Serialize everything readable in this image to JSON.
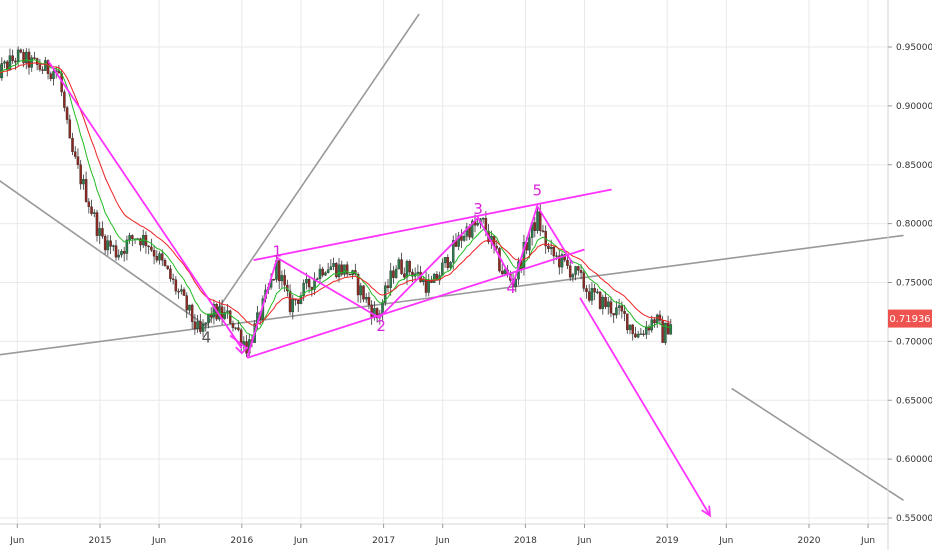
{
  "chart_data": {
    "type": "candlestick",
    "y_axis": {
      "side": "right",
      "ticks": [
        "0.95000",
        "0.90000",
        "0.85000",
        "0.80000",
        "0.75000",
        "0.70000",
        "0.65000",
        "0.60000",
        "0.55000"
      ],
      "ylim": [
        0.549,
        0.978
      ]
    },
    "x_axis": {
      "ticks": [
        "Jun",
        "2015",
        "Jun",
        "2016",
        "Jun",
        "2017",
        "Jun",
        "2018",
        "Jun",
        "2019",
        "Jun",
        "2020",
        "Jun"
      ],
      "range": [
        "2014-04",
        "2020-09"
      ]
    },
    "last_price": {
      "label": "0.71936",
      "value": 0.71936,
      "color": "#ef5350"
    },
    "colors": {
      "up": "#26a69a",
      "down": "#ef5350",
      "ema_fast": "#22bb22",
      "ema_slow": "#ee2222",
      "wave": "#ff33ff",
      "trend": "#999999",
      "grid": "#e9e9e9"
    },
    "series": [
      {
        "name": "price",
        "kind": "candles",
        "anchors": [
          [
            "2014-04-01",
            0.925
          ],
          [
            "2014-06-01",
            0.942
          ],
          [
            "2014-08-01",
            0.932
          ],
          [
            "2014-09-15",
            0.93
          ],
          [
            "2014-10-15",
            0.865
          ],
          [
            "2014-12-01",
            0.82
          ],
          [
            "2015-01-01",
            0.79
          ],
          [
            "2015-02-15",
            0.775
          ],
          [
            "2015-04-01",
            0.79
          ],
          [
            "2015-05-01",
            0.785
          ],
          [
            "2015-06-01",
            0.77
          ],
          [
            "2015-08-01",
            0.735
          ],
          [
            "2015-09-15",
            0.705
          ],
          [
            "2015-10-15",
            0.725
          ],
          [
            "2015-12-01",
            0.72
          ],
          [
            "2016-01-15",
            0.695
          ],
          [
            "2016-02-15",
            0.72
          ],
          [
            "2016-04-01",
            0.765
          ],
          [
            "2016-05-01",
            0.73
          ],
          [
            "2016-06-15",
            0.745
          ],
          [
            "2016-08-01",
            0.765
          ],
          [
            "2016-10-01",
            0.76
          ],
          [
            "2016-12-15",
            0.72
          ],
          [
            "2017-02-01",
            0.765
          ],
          [
            "2017-03-15",
            0.76
          ],
          [
            "2017-05-01",
            0.745
          ],
          [
            "2017-07-01",
            0.78
          ],
          [
            "2017-08-01",
            0.795
          ],
          [
            "2017-09-15",
            0.8
          ],
          [
            "2017-11-01",
            0.76
          ],
          [
            "2017-12-01",
            0.75
          ],
          [
            "2018-01-01",
            0.78
          ],
          [
            "2018-02-01",
            0.805
          ],
          [
            "2018-03-01",
            0.775
          ],
          [
            "2018-04-01",
            0.768
          ],
          [
            "2018-05-15",
            0.755
          ],
          [
            "2018-06-15",
            0.74
          ],
          [
            "2018-08-01",
            0.73
          ],
          [
            "2018-09-15",
            0.72
          ],
          [
            "2018-10-15",
            0.705
          ],
          [
            "2018-12-01",
            0.72
          ],
          [
            "2018-12-20",
            0.705
          ],
          [
            "2019-01-15",
            0.72
          ]
        ]
      },
      {
        "name": "ema_fast",
        "kind": "line",
        "period": 10
      },
      {
        "name": "ema_slow",
        "kind": "line",
        "period": 20
      }
    ],
    "wave_labels": [
      {
        "text": "1",
        "x": "2016-04-01",
        "y": 0.772
      },
      {
        "text": "2",
        "x": "2016-12-25",
        "y": 0.709
      },
      {
        "text": "3",
        "x": "2017-09-01",
        "y": 0.808
      },
      {
        "text": "4",
        "x": "2017-11-25",
        "y": 0.741
      },
      {
        "text": "5",
        "x": "2018-02-01",
        "y": 0.824
      },
      {
        "text": "4",
        "x": "2015-10-01",
        "y": 0.699
      }
    ],
    "drawings": [
      {
        "kind": "line",
        "color": "wave",
        "from": [
          "2014-08-20",
          0.938
        ],
        "to": [
          "2016-01-01",
          0.694
        ]
      },
      {
        "kind": "line",
        "color": "wave",
        "from": [
          "2015-12-01",
          0.705
        ],
        "to": [
          "2016-01-15",
          0.694
        ]
      },
      {
        "kind": "line",
        "color": "wave",
        "from": [
          "2016-01-15",
          0.686
        ],
        "to": [
          "2018-06-01",
          0.778
        ]
      },
      {
        "kind": "line",
        "color": "wave",
        "from": [
          "2016-02-01",
          0.769
        ],
        "to": [
          "2018-08-10",
          0.829
        ]
      },
      {
        "kind": "polyline",
        "color": "wave",
        "points": [
          [
            "2016-01-15",
            0.686
          ],
          [
            "2016-04-01",
            0.771
          ],
          [
            "2016-12-20",
            0.72
          ],
          [
            "2017-09-01",
            0.805
          ],
          [
            "2017-12-01",
            0.75
          ],
          [
            "2018-02-01",
            0.815
          ],
          [
            "2018-05-01",
            0.766
          ]
        ]
      },
      {
        "kind": "arrow",
        "color": "wave",
        "from": [
          "2018-05-20",
          0.737
        ],
        "to": [
          "2019-04-20",
          0.552
        ]
      },
      {
        "kind": "line",
        "color": "trend",
        "from": [
          "2014-04-01",
          0.688
        ],
        "to": [
          "2020-09-01",
          0.79
        ]
      },
      {
        "kind": "line",
        "color": "trend",
        "from": [
          "2014-04-01",
          0.84
        ],
        "to": [
          "2015-10-01",
          0.713
        ]
      },
      {
        "kind": "line",
        "color": "trend",
        "from": [
          "2015-10-01",
          0.713
        ],
        "to": [
          "2017-04-01",
          0.978
        ]
      },
      {
        "kind": "line",
        "color": "trend",
        "from": [
          "2019-06-15",
          0.66
        ],
        "to": [
          "2020-09-01",
          0.565
        ]
      }
    ]
  }
}
